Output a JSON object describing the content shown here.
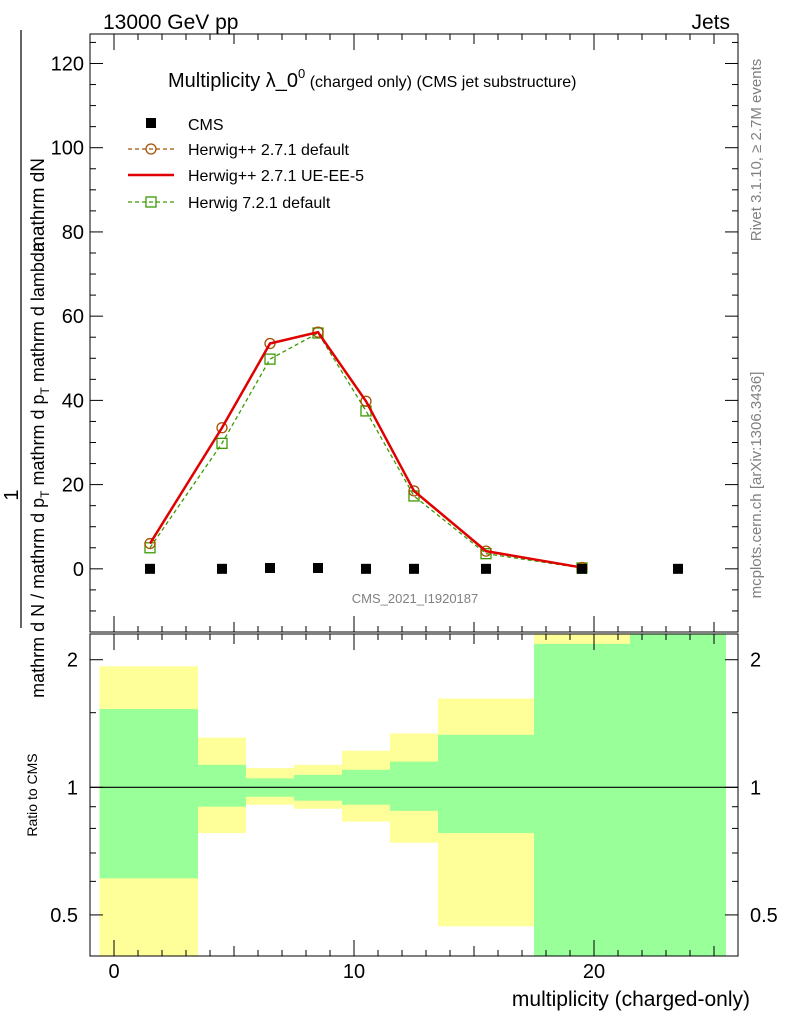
{
  "header": {
    "left": "13000 GeV pp",
    "right": "Jets"
  },
  "side": {
    "rivet": "Rivet 3.1.10, ≥ 2.7M events",
    "mcplots": "mcplots.cern.ch [arXiv:1306.3436]"
  },
  "chart_data": [
    {
      "type": "line",
      "title": "Multiplicity λ_0",
      "title_sup": "0",
      "title_suffix": " (charged only) (CMS jet substructure)",
      "watermark": "CMS_2021_I1920187",
      "ylabel_line1": "mathrm dN",
      "ylabel_line2": "mathrm d N / mathrm d p",
      "ylabel_line2_sub": "T",
      "ylabel_line2b": " mathrm d p",
      "ylabel_line2b_sub": "T",
      "ylabel_line2c": " mathrm d lambda",
      "ylabel_one": "1",
      "xlim": [
        -1,
        26
      ],
      "ylim": [
        -15,
        127
      ],
      "yticks": [
        0,
        20,
        40,
        60,
        80,
        100,
        120
      ],
      "legend_position": "top-left",
      "series": [
        {
          "name": "CMS",
          "style": "marker-square",
          "color": "#000000",
          "x": [
            1.5,
            4.5,
            6.5,
            8.5,
            10.5,
            12.5,
            15.5,
            19.5,
            23.5
          ],
          "y": [
            0,
            0,
            0.2,
            0.2,
            0,
            0,
            0,
            0,
            0
          ]
        },
        {
          "name": "Herwig++ 2.7.1 default",
          "style": "dashed-circle",
          "color": "#a65000",
          "x": [
            1.5,
            4.5,
            6.5,
            8.5,
            10.5,
            12.5,
            15.5,
            19.5
          ],
          "y": [
            6,
            33.5,
            53.5,
            56.2,
            39.8,
            18.5,
            4.2,
            0.3
          ]
        },
        {
          "name": "Herwig++ 2.7.1 UE-EE-5",
          "style": "solid",
          "color": "#e00000",
          "x": [
            1.5,
            4.5,
            6.5,
            8.5,
            10.5,
            12.5,
            15.5,
            19.5
          ],
          "y": [
            6,
            33.5,
            53.5,
            56.2,
            39.8,
            18.5,
            4.2,
            0.3
          ]
        },
        {
          "name": "Herwig 7.2.1 default",
          "style": "dashed-square",
          "color": "#3a9a00",
          "x": [
            1.5,
            4.5,
            6.5,
            8.5,
            10.5,
            12.5,
            15.5,
            19.5
          ],
          "y": [
            5,
            29.8,
            49.8,
            56,
            37.5,
            17.3,
            3.6,
            0.2
          ]
        }
      ]
    },
    {
      "type": "area",
      "ylabel": "Ratio to CMS",
      "xlabel": "multiplicity (charged-only)",
      "xlim": [
        -1,
        26
      ],
      "ylim": [
        0.4,
        2.3
      ],
      "yticks": [
        0.5,
        1,
        2
      ],
      "xticks": [
        0,
        10,
        20
      ],
      "reference_line": 1,
      "bands": [
        {
          "x0": -0.6,
          "x1": 3.5,
          "green_lo": 0.61,
          "green_hi": 1.53,
          "yellow_lo": 0.35,
          "yellow_hi": 1.93
        },
        {
          "x0": 3.5,
          "x1": 5.5,
          "green_lo": 0.9,
          "green_hi": 1.13,
          "yellow_lo": 0.78,
          "yellow_hi": 1.31
        },
        {
          "x0": 5.5,
          "x1": 7.5,
          "green_lo": 0.95,
          "green_hi": 1.05,
          "yellow_lo": 0.91,
          "yellow_hi": 1.11
        },
        {
          "x0": 7.5,
          "x1": 9.5,
          "green_lo": 0.93,
          "green_hi": 1.07,
          "yellow_lo": 0.89,
          "yellow_hi": 1.13
        },
        {
          "x0": 9.5,
          "x1": 11.5,
          "green_lo": 0.91,
          "green_hi": 1.1,
          "yellow_lo": 0.83,
          "yellow_hi": 1.22
        },
        {
          "x0": 11.5,
          "x1": 13.5,
          "green_lo": 0.88,
          "green_hi": 1.15,
          "yellow_lo": 0.74,
          "yellow_hi": 1.34
        },
        {
          "x0": 13.5,
          "x1": 17.5,
          "green_lo": 0.78,
          "green_hi": 1.33,
          "yellow_lo": 0.47,
          "yellow_hi": 1.62
        },
        {
          "x0": 17.5,
          "x1": 21.5,
          "green_lo": 0.35,
          "green_hi": 2.18,
          "yellow_lo": 0.35,
          "yellow_hi": 2.5
        },
        {
          "x0": 21.5,
          "x1": 25.5,
          "green_lo": 0.35,
          "green_hi": 2.5,
          "yellow_lo": 0.35,
          "yellow_hi": 2.5
        }
      ]
    }
  ],
  "colors": {
    "green_band": "#99ff99",
    "yellow_band": "#ffff99"
  }
}
